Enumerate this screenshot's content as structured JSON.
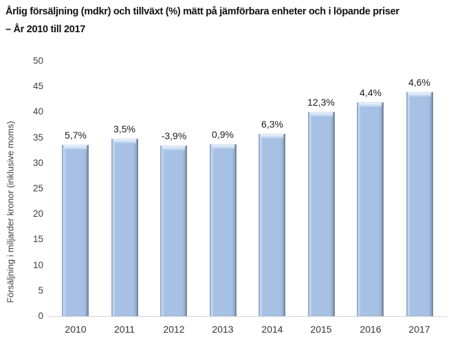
{
  "title": {
    "line1": "Årlig försäljning (mdkr) och tillväxt (%) mätt på jämförbara enheter och i löpande priser",
    "line2": "– År 2010 till 2017"
  },
  "chart_data": {
    "type": "bar",
    "categories": [
      "2010",
      "2011",
      "2012",
      "2013",
      "2014",
      "2015",
      "2016",
      "2017"
    ],
    "values": [
      33.6,
      34.8,
      33.5,
      33.8,
      35.7,
      40.1,
      41.9,
      43.9
    ],
    "data_labels": [
      "5,7%",
      "3,5%",
      "-3,9%",
      "0,9%",
      "6,3%",
      "12,3%",
      "4,4%",
      "4,6%"
    ],
    "title": "Årlig försäljning (mdkr) och tillväxt (%) mätt på jämförbara enheter och i löpande priser – År 2010 till 2017",
    "xlabel": "",
    "ylabel": "Försäljning i miljarder kronor (inklusive moms)",
    "ylim": [
      0,
      50
    ],
    "yticks": [
      0,
      5,
      10,
      15,
      20,
      25,
      30,
      35,
      40,
      45,
      50
    ],
    "grid": false,
    "legend": false,
    "bar_color": "#a6c1e3",
    "bar_highlight_color": "#eff5fb",
    "bar_edge_dark": "#76869e",
    "bar_edge_light": "#93aed3",
    "axis_line_color": "#d6d6d6",
    "text_color": "#404040"
  }
}
